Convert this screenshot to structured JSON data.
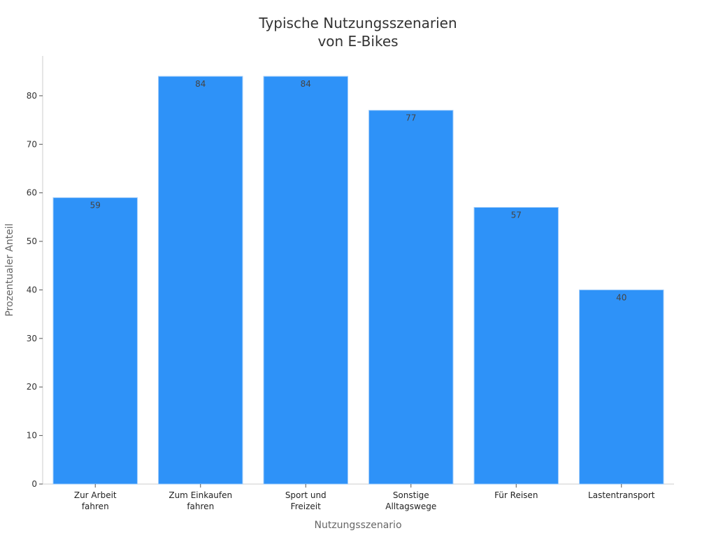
{
  "chart_data": {
    "type": "bar",
    "title_lines": [
      "Typische Nutzungsszenarien",
      "von E-Bikes"
    ],
    "xlabel": "Nutzungsszenario",
    "ylabel": "Prozentualer Anteil",
    "categories": [
      [
        "Zur Arbeit",
        "fahren"
      ],
      [
        "Zum Einkaufen",
        "fahren"
      ],
      [
        "Sport und",
        "Freizeit"
      ],
      [
        "Sonstige",
        "Alltagswege"
      ],
      [
        "Für Reisen"
      ],
      [
        "Lastentransport"
      ]
    ],
    "values": [
      59,
      84,
      84,
      77,
      57,
      40
    ],
    "y_ticks": [
      "0",
      "10",
      "20",
      "30",
      "40",
      "50",
      "60",
      "70",
      "80"
    ],
    "ylim": [
      0,
      88.2
    ],
    "grid": false,
    "legend": "none",
    "colors": {
      "bar": "#2e92f8",
      "bar_edge": "#9fccfa",
      "axis": "#cccccc",
      "tick": "#555555"
    }
  }
}
